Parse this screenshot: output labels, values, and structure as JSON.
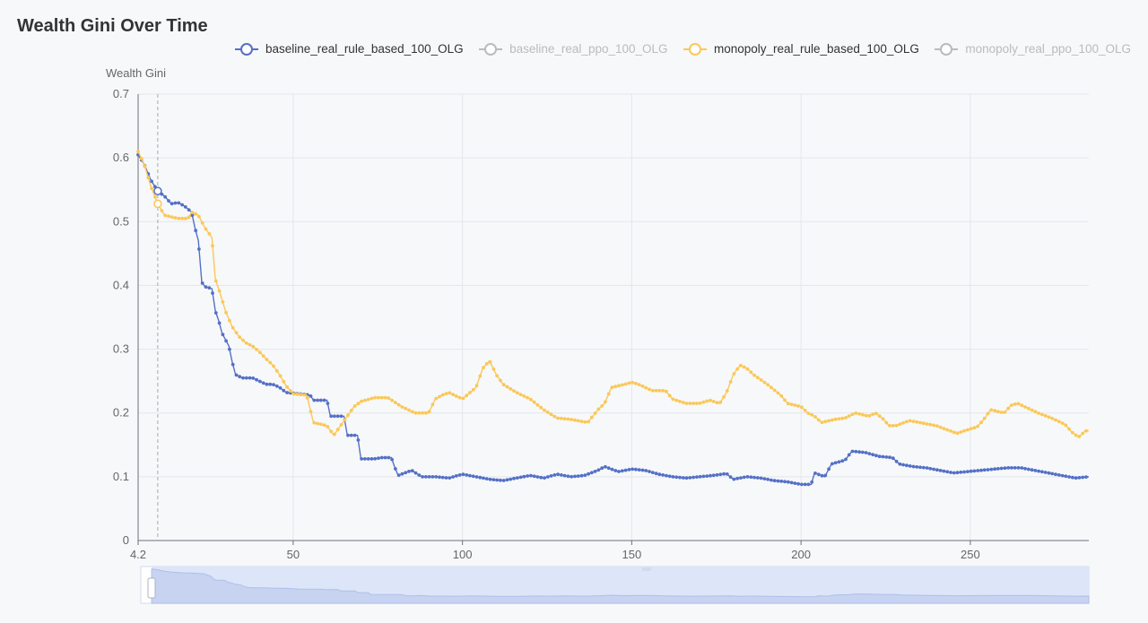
{
  "chart_data": {
    "type": "line",
    "title": "Wealth Gini Over Time",
    "ylabel": "Wealth Gini",
    "xlabel": "",
    "xlim": [
      4.2,
      285
    ],
    "ylim": [
      0,
      0.7
    ],
    "x_ticks": [
      "4.2",
      "50",
      "100",
      "150",
      "200",
      "250"
    ],
    "x_tick_values": [
      4.2,
      50,
      100,
      150,
      200,
      250
    ],
    "y_ticks": [
      "0",
      "0.1",
      "0.2",
      "0.3",
      "0.4",
      "0.5",
      "0.6",
      "0.7"
    ],
    "grid": true,
    "legend_position": "top",
    "tooltip_x": 10,
    "series": [
      {
        "name": "baseline_real_rule_based_100_OLG",
        "color": "#5470c6",
        "visible": true,
        "points": [
          [
            4.2,
            0.605
          ],
          [
            6,
            0.59
          ],
          [
            8,
            0.565
          ],
          [
            10,
            0.548
          ],
          [
            12,
            0.54
          ],
          [
            14,
            0.528
          ],
          [
            16,
            0.53
          ],
          [
            18,
            0.524
          ],
          [
            20,
            0.515
          ],
          [
            21,
            0.49
          ],
          [
            22,
            0.47
          ],
          [
            23,
            0.405
          ],
          [
            24,
            0.398
          ],
          [
            26,
            0.395
          ],
          [
            27,
            0.36
          ],
          [
            28,
            0.345
          ],
          [
            29,
            0.325
          ],
          [
            31,
            0.305
          ],
          [
            32,
            0.28
          ],
          [
            33,
            0.26
          ],
          [
            35,
            0.255
          ],
          [
            38,
            0.255
          ],
          [
            40,
            0.25
          ],
          [
            42,
            0.245
          ],
          [
            44,
            0.245
          ],
          [
            46,
            0.24
          ],
          [
            48,
            0.232
          ],
          [
            52,
            0.23
          ],
          [
            55,
            0.228
          ],
          [
            56,
            0.22
          ],
          [
            60,
            0.22
          ],
          [
            61,
            0.195
          ],
          [
            65,
            0.195
          ],
          [
            66,
            0.165
          ],
          [
            69,
            0.165
          ],
          [
            70,
            0.128
          ],
          [
            74,
            0.128
          ],
          [
            76,
            0.13
          ],
          [
            79,
            0.13
          ],
          [
            80,
            0.115
          ],
          [
            81,
            0.102
          ],
          [
            85,
            0.11
          ],
          [
            88,
            0.1
          ],
          [
            92,
            0.1
          ],
          [
            96,
            0.098
          ],
          [
            100,
            0.104
          ],
          [
            104,
            0.1
          ],
          [
            108,
            0.096
          ],
          [
            112,
            0.094
          ],
          [
            116,
            0.098
          ],
          [
            120,
            0.102
          ],
          [
            124,
            0.098
          ],
          [
            128,
            0.104
          ],
          [
            132,
            0.1
          ],
          [
            136,
            0.102
          ],
          [
            140,
            0.11
          ],
          [
            142,
            0.116
          ],
          [
            146,
            0.108
          ],
          [
            150,
            0.112
          ],
          [
            154,
            0.11
          ],
          [
            158,
            0.104
          ],
          [
            162,
            0.1
          ],
          [
            166,
            0.098
          ],
          [
            170,
            0.1
          ],
          [
            174,
            0.102
          ],
          [
            178,
            0.105
          ],
          [
            180,
            0.096
          ],
          [
            184,
            0.1
          ],
          [
            188,
            0.098
          ],
          [
            192,
            0.094
          ],
          [
            196,
            0.092
          ],
          [
            200,
            0.088
          ],
          [
            203,
            0.088
          ],
          [
            204,
            0.106
          ],
          [
            207,
            0.1
          ],
          [
            209,
            0.12
          ],
          [
            213,
            0.126
          ],
          [
            215,
            0.14
          ],
          [
            219,
            0.138
          ],
          [
            223,
            0.132
          ],
          [
            227,
            0.13
          ],
          [
            229,
            0.12
          ],
          [
            233,
            0.116
          ],
          [
            237,
            0.114
          ],
          [
            241,
            0.11
          ],
          [
            245,
            0.106
          ],
          [
            249,
            0.108
          ],
          [
            253,
            0.11
          ],
          [
            257,
            0.112
          ],
          [
            261,
            0.114
          ],
          [
            265,
            0.114
          ],
          [
            269,
            0.11
          ],
          [
            273,
            0.106
          ],
          [
            277,
            0.102
          ],
          [
            281,
            0.098
          ],
          [
            285,
            0.1
          ]
        ]
      },
      {
        "name": "baseline_real_ppo_100_OLG",
        "color": "#bbbbbb",
        "visible": false,
        "points": []
      },
      {
        "name": "monopoly_real_rule_based_100_OLG",
        "color": "#fac858",
        "visible": true,
        "points": [
          [
            4.2,
            0.61
          ],
          [
            6,
            0.59
          ],
          [
            8,
            0.555
          ],
          [
            10,
            0.528
          ],
          [
            12,
            0.51
          ],
          [
            16,
            0.505
          ],
          [
            19,
            0.505
          ],
          [
            20,
            0.515
          ],
          [
            22,
            0.51
          ],
          [
            24,
            0.49
          ],
          [
            26,
            0.475
          ],
          [
            27,
            0.41
          ],
          [
            28,
            0.395
          ],
          [
            30,
            0.36
          ],
          [
            32,
            0.335
          ],
          [
            34,
            0.32
          ],
          [
            36,
            0.31
          ],
          [
            38,
            0.305
          ],
          [
            40,
            0.296
          ],
          [
            42,
            0.285
          ],
          [
            44,
            0.275
          ],
          [
            46,
            0.26
          ],
          [
            48,
            0.242
          ],
          [
            50,
            0.23
          ],
          [
            54,
            0.228
          ],
          [
            56,
            0.185
          ],
          [
            60,
            0.18
          ],
          [
            62,
            0.165
          ],
          [
            64,
            0.18
          ],
          [
            66,
            0.195
          ],
          [
            68,
            0.21
          ],
          [
            70,
            0.218
          ],
          [
            74,
            0.224
          ],
          [
            78,
            0.224
          ],
          [
            82,
            0.21
          ],
          [
            86,
            0.2
          ],
          [
            90,
            0.2
          ],
          [
            92,
            0.222
          ],
          [
            94,
            0.228
          ],
          [
            96,
            0.232
          ],
          [
            100,
            0.222
          ],
          [
            104,
            0.24
          ],
          [
            106,
            0.27
          ],
          [
            108,
            0.282
          ],
          [
            110,
            0.26
          ],
          [
            112,
            0.245
          ],
          [
            116,
            0.232
          ],
          [
            120,
            0.222
          ],
          [
            124,
            0.205
          ],
          [
            128,
            0.192
          ],
          [
            132,
            0.19
          ],
          [
            134,
            0.188
          ],
          [
            137,
            0.185
          ],
          [
            140,
            0.205
          ],
          [
            142,
            0.215
          ],
          [
            144,
            0.24
          ],
          [
            148,
            0.245
          ],
          [
            150,
            0.248
          ],
          [
            152,
            0.245
          ],
          [
            156,
            0.235
          ],
          [
            160,
            0.235
          ],
          [
            162,
            0.222
          ],
          [
            166,
            0.215
          ],
          [
            170,
            0.215
          ],
          [
            173,
            0.22
          ],
          [
            176,
            0.215
          ],
          [
            178,
            0.232
          ],
          [
            180,
            0.26
          ],
          [
            182,
            0.275
          ],
          [
            184,
            0.27
          ],
          [
            186,
            0.26
          ],
          [
            190,
            0.245
          ],
          [
            194,
            0.228
          ],
          [
            196,
            0.215
          ],
          [
            200,
            0.21
          ],
          [
            202,
            0.2
          ],
          [
            204,
            0.195
          ],
          [
            206,
            0.185
          ],
          [
            210,
            0.19
          ],
          [
            213,
            0.192
          ],
          [
            216,
            0.2
          ],
          [
            220,
            0.195
          ],
          [
            222,
            0.2
          ],
          [
            224,
            0.192
          ],
          [
            226,
            0.18
          ],
          [
            228,
            0.18
          ],
          [
            232,
            0.188
          ],
          [
            236,
            0.184
          ],
          [
            240,
            0.18
          ],
          [
            244,
            0.172
          ],
          [
            246,
            0.168
          ],
          [
            250,
            0.175
          ],
          [
            252,
            0.178
          ],
          [
            254,
            0.19
          ],
          [
            256,
            0.205
          ],
          [
            260,
            0.2
          ],
          [
            262,
            0.212
          ],
          [
            264,
            0.215
          ],
          [
            266,
            0.21
          ],
          [
            270,
            0.2
          ],
          [
            274,
            0.192
          ],
          [
            278,
            0.182
          ],
          [
            280,
            0.17
          ],
          [
            282,
            0.162
          ],
          [
            284,
            0.172
          ],
          [
            285,
            0.172
          ]
        ]
      },
      {
        "name": "monopoly_real_ppo_100_OLG",
        "color": "#bbbbbb",
        "visible": false,
        "points": []
      }
    ]
  }
}
